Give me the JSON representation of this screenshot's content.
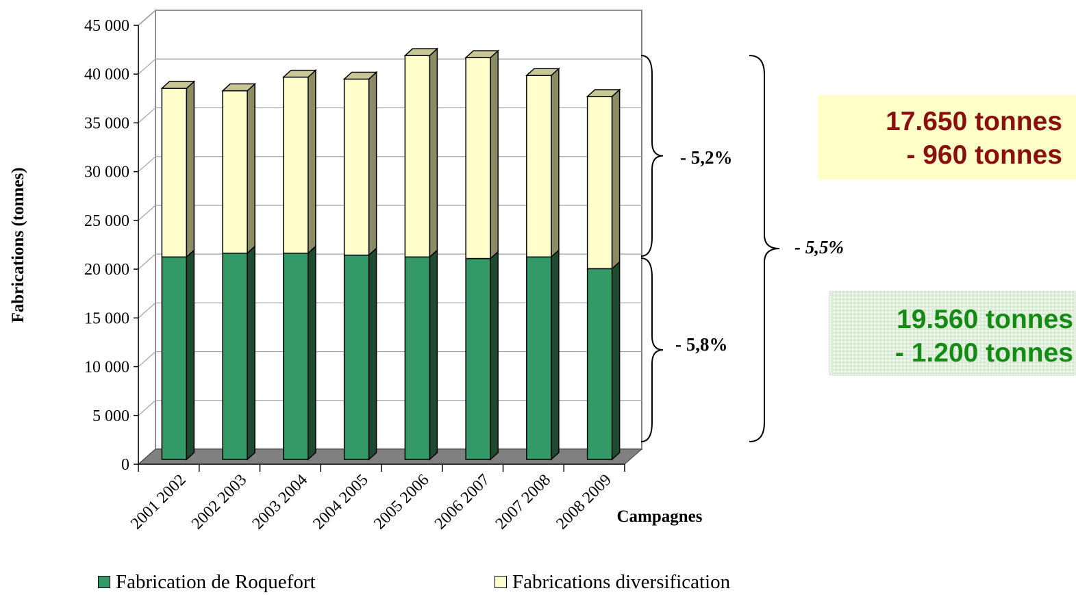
{
  "chart_data": {
    "type": "bar",
    "stacked": true,
    "three_d": true,
    "categories": [
      "2001 2002",
      "2002 2003",
      "2003 2004",
      "2004 2005",
      "2005 2006",
      "2006 2007",
      "2007 2008",
      "2008 2009"
    ],
    "series": [
      {
        "name": "Fabrication de Roquefort",
        "color": "#339966",
        "side_color": "#1d4a30",
        "top_color": "#2a7a50",
        "values": [
          20760,
          21150,
          21150,
          20950,
          20760,
          20600,
          20760,
          19560
        ]
      },
      {
        "name": "Fabrications diversification",
        "color": "#ffffcc",
        "side_color": "#8c8c64",
        "top_color": "#c8c896",
        "values": [
          17290,
          16650,
          18050,
          18050,
          20650,
          20600,
          18610,
          17650
        ]
      }
    ],
    "ylabel": "Fabrications (tonnes)",
    "xlabel": "Campagnes",
    "ylim": [
      0,
      45000
    ],
    "yticks": [
      "0",
      "5 000",
      "10 000",
      "15 000",
      "20 000",
      "25 000",
      "30 000",
      "35 000",
      "40 000",
      "45 000"
    ],
    "ytick_values": [
      0,
      5000,
      10000,
      15000,
      20000,
      25000,
      30000,
      35000,
      40000,
      45000
    ],
    "grid": true,
    "legend_position": "bottom",
    "annotations": {
      "diversification_change": "- 5,2%",
      "roquefort_change": "- 5,8%",
      "total_change": "- 5,5%"
    }
  },
  "info_boxes": {
    "diversification": {
      "line1": "17.650 tonnes",
      "line2": "- 960 tonnes",
      "color": "#8b0f0f",
      "background": "#ffffc8"
    },
    "roquefort": {
      "line1": "19.560 tonnes",
      "line2": "- 1.200 tonnes",
      "color": "#148c14",
      "background": "#c4e4bc"
    }
  },
  "legend": {
    "item1": "Fabrication de Roquefort",
    "item2": "Fabrications diversification"
  }
}
